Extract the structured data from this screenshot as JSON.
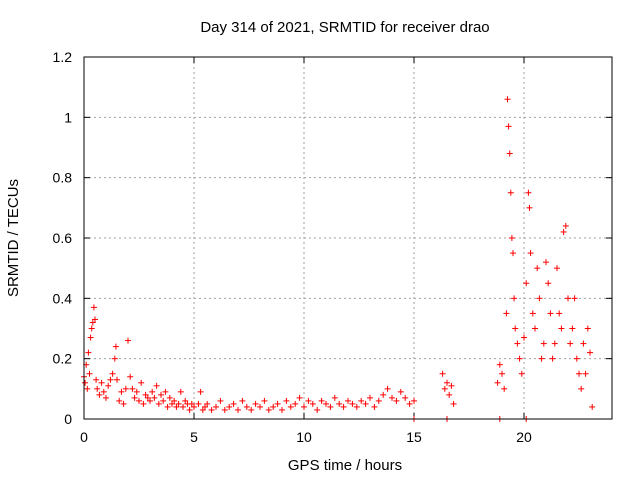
{
  "chart_data": {
    "type": "scatter",
    "title": "Day 314 of 2021, SRMTID for receiver drao",
    "xlabel": "GPS time / hours",
    "ylabel": "SRMTID / TECUs",
    "xlim": [
      0,
      24
    ],
    "ylim": [
      0,
      1.2
    ],
    "xticks": [
      0,
      5,
      10,
      15,
      20
    ],
    "xtick_labels": [
      "0",
      "5",
      "10",
      "15",
      "20"
    ],
    "yticks": [
      0,
      0.2,
      0.4,
      0.6,
      0.8,
      1,
      1.2
    ],
    "ytick_labels": [
      "0",
      "0.2",
      "0.4",
      "0.6",
      "0.8",
      "1",
      "1.2"
    ],
    "grid": true,
    "marker": "+",
    "color": "#ff0000",
    "series": [
      {
        "name": "SRMTID",
        "points": [
          [
            0.0,
            0.14
          ],
          [
            0.05,
            0.12
          ],
          [
            0.1,
            0.18
          ],
          [
            0.15,
            0.1
          ],
          [
            0.2,
            0.22
          ],
          [
            0.25,
            0.15
          ],
          [
            0.3,
            0.27
          ],
          [
            0.35,
            0.3
          ],
          [
            0.4,
            0.32
          ],
          [
            0.45,
            0.37
          ],
          [
            0.5,
            0.33
          ],
          [
            0.55,
            0.13
          ],
          [
            0.6,
            0.1
          ],
          [
            0.7,
            0.08
          ],
          [
            0.8,
            0.12
          ],
          [
            0.9,
            0.09
          ],
          [
            1.0,
            0.07
          ],
          [
            1.1,
            0.11
          ],
          [
            1.2,
            0.13
          ],
          [
            1.3,
            0.15
          ],
          [
            1.4,
            0.2
          ],
          [
            1.45,
            0.24
          ],
          [
            1.5,
            0.13
          ],
          [
            1.6,
            0.06
          ],
          [
            1.7,
            0.09
          ],
          [
            1.8,
            0.05
          ],
          [
            1.9,
            0.1
          ],
          [
            2.0,
            0.26
          ],
          [
            2.1,
            0.14
          ],
          [
            2.2,
            0.1
          ],
          [
            2.3,
            0.07
          ],
          [
            2.4,
            0.09
          ],
          [
            2.5,
            0.06
          ],
          [
            2.6,
            0.12
          ],
          [
            2.7,
            0.05
          ],
          [
            2.8,
            0.08
          ],
          [
            2.9,
            0.07
          ],
          [
            3.0,
            0.06
          ],
          [
            3.1,
            0.09
          ],
          [
            3.2,
            0.07
          ],
          [
            3.3,
            0.11
          ],
          [
            3.4,
            0.05
          ],
          [
            3.5,
            0.08
          ],
          [
            3.6,
            0.06
          ],
          [
            3.7,
            0.09
          ],
          [
            3.8,
            0.04
          ],
          [
            3.9,
            0.07
          ],
          [
            4.0,
            0.05
          ],
          [
            4.1,
            0.06
          ],
          [
            4.2,
            0.04
          ],
          [
            4.3,
            0.05
          ],
          [
            4.4,
            0.09
          ],
          [
            4.5,
            0.04
          ],
          [
            4.6,
            0.06
          ],
          [
            4.7,
            0.05
          ],
          [
            4.8,
            0.03
          ],
          [
            4.9,
            0.05
          ],
          [
            5.0,
            0.04
          ],
          [
            5.2,
            0.05
          ],
          [
            5.3,
            0.09
          ],
          [
            5.4,
            0.03
          ],
          [
            5.5,
            0.04
          ],
          [
            5.6,
            0.05
          ],
          [
            5.8,
            0.03
          ],
          [
            6.0,
            0.04
          ],
          [
            6.2,
            0.06
          ],
          [
            6.4,
            0.03
          ],
          [
            6.6,
            0.04
          ],
          [
            6.8,
            0.05
          ],
          [
            7.0,
            0.03
          ],
          [
            7.2,
            0.06
          ],
          [
            7.4,
            0.04
          ],
          [
            7.6,
            0.03
          ],
          [
            7.8,
            0.05
          ],
          [
            8.0,
            0.04
          ],
          [
            8.2,
            0.06
          ],
          [
            8.4,
            0.03
          ],
          [
            8.6,
            0.04
          ],
          [
            8.8,
            0.05
          ],
          [
            9.0,
            0.03
          ],
          [
            9.2,
            0.06
          ],
          [
            9.4,
            0.04
          ],
          [
            9.6,
            0.05
          ],
          [
            9.8,
            0.07
          ],
          [
            10.0,
            0.04
          ],
          [
            10.2,
            0.06
          ],
          [
            10.4,
            0.05
          ],
          [
            10.6,
            0.03
          ],
          [
            10.8,
            0.06
          ],
          [
            11.0,
            0.05
          ],
          [
            11.2,
            0.04
          ],
          [
            11.4,
            0.07
          ],
          [
            11.6,
            0.05
          ],
          [
            11.8,
            0.04
          ],
          [
            12.0,
            0.06
          ],
          [
            12.2,
            0.05
          ],
          [
            12.4,
            0.04
          ],
          [
            12.6,
            0.06
          ],
          [
            12.8,
            0.05
          ],
          [
            13.0,
            0.07
          ],
          [
            13.2,
            0.04
          ],
          [
            13.4,
            0.06
          ],
          [
            13.6,
            0.08
          ],
          [
            13.8,
            0.1
          ],
          [
            14.0,
            0.07
          ],
          [
            14.2,
            0.06
          ],
          [
            14.4,
            0.09
          ],
          [
            14.6,
            0.07
          ],
          [
            14.8,
            0.05
          ],
          [
            15.0,
            0.06
          ],
          [
            16.3,
            0.15
          ],
          [
            16.4,
            0.1
          ],
          [
            16.5,
            0.12
          ],
          [
            16.6,
            0.08
          ],
          [
            16.7,
            0.11
          ],
          [
            16.8,
            0.05
          ],
          [
            18.8,
            0.12
          ],
          [
            18.9,
            0.18
          ],
          [
            19.0,
            0.15
          ],
          [
            19.1,
            0.1
          ],
          [
            19.2,
            0.35
          ],
          [
            19.25,
            1.06
          ],
          [
            19.3,
            0.97
          ],
          [
            19.35,
            0.88
          ],
          [
            19.4,
            0.75
          ],
          [
            19.45,
            0.6
          ],
          [
            19.5,
            0.55
          ],
          [
            19.55,
            0.4
          ],
          [
            19.6,
            0.3
          ],
          [
            19.7,
            0.25
          ],
          [
            19.8,
            0.2
          ],
          [
            19.9,
            0.15
          ],
          [
            20.0,
            0.27
          ],
          [
            20.1,
            0.45
          ],
          [
            20.2,
            0.75
          ],
          [
            20.25,
            0.7
          ],
          [
            20.3,
            0.55
          ],
          [
            20.4,
            0.35
          ],
          [
            20.5,
            0.3
          ],
          [
            20.6,
            0.5
          ],
          [
            20.7,
            0.4
          ],
          [
            20.8,
            0.2
          ],
          [
            20.9,
            0.25
          ],
          [
            21.0,
            0.52
          ],
          [
            21.1,
            0.45
          ],
          [
            21.2,
            0.35
          ],
          [
            21.3,
            0.2
          ],
          [
            21.4,
            0.25
          ],
          [
            21.5,
            0.5
          ],
          [
            21.6,
            0.35
          ],
          [
            21.7,
            0.3
          ],
          [
            21.8,
            0.62
          ],
          [
            21.9,
            0.64
          ],
          [
            22.0,
            0.4
          ],
          [
            22.1,
            0.25
          ],
          [
            22.2,
            0.3
          ],
          [
            22.3,
            0.4
          ],
          [
            22.4,
            0.2
          ],
          [
            22.5,
            0.15
          ],
          [
            22.6,
            0.1
          ],
          [
            22.7,
            0.25
          ],
          [
            22.8,
            0.15
          ],
          [
            22.9,
            0.3
          ],
          [
            23.0,
            0.22
          ],
          [
            23.1,
            0.04
          ],
          [
            15.0,
            0.0
          ],
          [
            16.5,
            0.0
          ],
          [
            18.9,
            0.0
          ],
          [
            20.1,
            0.0
          ]
        ]
      }
    ]
  }
}
